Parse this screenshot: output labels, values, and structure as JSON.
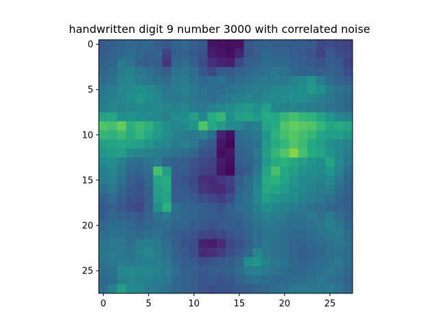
{
  "chart_data": {
    "type": "heatmap",
    "title": "handwritten digit 9 number 3000 with correlated noise",
    "xlabel": "",
    "ylabel": "",
    "x_ticks": [
      0,
      5,
      10,
      15,
      20,
      25
    ],
    "y_ticks": [
      0,
      5,
      10,
      15,
      20,
      25
    ],
    "xlim": [
      -0.5,
      27.5
    ],
    "ylim": [
      27.5,
      -0.5
    ],
    "grid": false,
    "legend": "none",
    "colormap": "viridis",
    "rows": 28,
    "cols": 28,
    "values": [
      [
        0.28,
        0.3,
        0.32,
        0.34,
        0.33,
        0.35,
        0.3,
        0.28,
        0.32,
        0.34,
        0.3,
        0.28,
        0.06,
        0.05,
        0.04,
        0.05,
        0.28,
        0.3,
        0.32,
        0.3,
        0.3,
        0.28,
        0.3,
        0.28,
        0.22,
        0.24,
        0.22,
        0.2
      ],
      [
        0.3,
        0.32,
        0.34,
        0.36,
        0.34,
        0.3,
        0.32,
        0.2,
        0.3,
        0.32,
        0.28,
        0.26,
        0.08,
        0.06,
        0.04,
        0.1,
        0.26,
        0.3,
        0.34,
        0.32,
        0.32,
        0.3,
        0.28,
        0.26,
        0.2,
        0.28,
        0.24,
        0.22
      ],
      [
        0.32,
        0.34,
        0.4,
        0.38,
        0.32,
        0.3,
        0.3,
        0.16,
        0.34,
        0.36,
        0.3,
        0.24,
        0.14,
        0.1,
        0.08,
        0.22,
        0.3,
        0.32,
        0.36,
        0.34,
        0.34,
        0.32,
        0.3,
        0.28,
        0.26,
        0.3,
        0.28,
        0.2
      ],
      [
        0.34,
        0.36,
        0.42,
        0.44,
        0.4,
        0.38,
        0.34,
        0.3,
        0.38,
        0.4,
        0.36,
        0.28,
        0.22,
        0.3,
        0.28,
        0.32,
        0.34,
        0.36,
        0.38,
        0.4,
        0.38,
        0.34,
        0.32,
        0.32,
        0.3,
        0.32,
        0.3,
        0.24
      ],
      [
        0.36,
        0.38,
        0.44,
        0.46,
        0.42,
        0.4,
        0.38,
        0.36,
        0.4,
        0.42,
        0.38,
        0.34,
        0.36,
        0.38,
        0.34,
        0.36,
        0.38,
        0.4,
        0.4,
        0.42,
        0.4,
        0.44,
        0.46,
        0.52,
        0.42,
        0.36,
        0.32,
        0.3
      ],
      [
        0.4,
        0.42,
        0.46,
        0.48,
        0.5,
        0.48,
        0.44,
        0.4,
        0.42,
        0.44,
        0.4,
        0.38,
        0.36,
        0.36,
        0.38,
        0.4,
        0.42,
        0.42,
        0.44,
        0.46,
        0.46,
        0.48,
        0.5,
        0.54,
        0.5,
        0.42,
        0.38,
        0.36
      ],
      [
        0.42,
        0.44,
        0.46,
        0.5,
        0.52,
        0.5,
        0.46,
        0.42,
        0.4,
        0.42,
        0.4,
        0.38,
        0.36,
        0.4,
        0.42,
        0.44,
        0.46,
        0.44,
        0.46,
        0.48,
        0.48,
        0.5,
        0.48,
        0.46,
        0.44,
        0.4,
        0.36,
        0.34
      ],
      [
        0.44,
        0.46,
        0.44,
        0.46,
        0.48,
        0.46,
        0.48,
        0.46,
        0.44,
        0.46,
        0.42,
        0.4,
        0.44,
        0.46,
        0.48,
        0.52,
        0.54,
        0.5,
        0.56,
        0.46,
        0.44,
        0.46,
        0.44,
        0.42,
        0.4,
        0.38,
        0.36,
        0.34
      ],
      [
        0.58,
        0.6,
        0.5,
        0.52,
        0.5,
        0.48,
        0.46,
        0.44,
        0.48,
        0.5,
        0.56,
        0.46,
        0.62,
        0.66,
        0.5,
        0.56,
        0.58,
        0.54,
        0.62,
        0.6,
        0.66,
        0.7,
        0.66,
        0.64,
        0.58,
        0.52,
        0.46,
        0.44
      ],
      [
        0.72,
        0.7,
        0.76,
        0.64,
        0.68,
        0.64,
        0.56,
        0.5,
        0.46,
        0.48,
        0.52,
        0.72,
        0.6,
        0.54,
        0.48,
        0.46,
        0.4,
        0.44,
        0.58,
        0.62,
        0.72,
        0.76,
        0.74,
        0.72,
        0.66,
        0.6,
        0.62,
        0.58
      ],
      [
        0.66,
        0.64,
        0.68,
        0.62,
        0.66,
        0.6,
        0.54,
        0.5,
        0.44,
        0.42,
        0.4,
        0.44,
        0.36,
        0.1,
        0.04,
        0.36,
        0.38,
        0.4,
        0.52,
        0.64,
        0.7,
        0.74,
        0.7,
        0.66,
        0.6,
        0.56,
        0.56,
        0.52
      ],
      [
        0.56,
        0.58,
        0.6,
        0.58,
        0.56,
        0.52,
        0.48,
        0.46,
        0.42,
        0.44,
        0.4,
        0.32,
        0.28,
        0.06,
        0.02,
        0.34,
        0.36,
        0.38,
        0.54,
        0.62,
        0.66,
        0.72,
        0.68,
        0.6,
        0.56,
        0.5,
        0.48,
        0.44
      ],
      [
        0.52,
        0.54,
        0.56,
        0.48,
        0.46,
        0.44,
        0.42,
        0.4,
        0.38,
        0.36,
        0.34,
        0.26,
        0.24,
        0.04,
        0.06,
        0.32,
        0.34,
        0.4,
        0.56,
        0.66,
        0.72,
        0.82,
        0.7,
        0.62,
        0.58,
        0.52,
        0.46,
        0.42
      ],
      [
        0.48,
        0.5,
        0.44,
        0.38,
        0.36,
        0.38,
        0.4,
        0.34,
        0.32,
        0.3,
        0.26,
        0.22,
        0.2,
        0.08,
        0.04,
        0.3,
        0.32,
        0.38,
        0.54,
        0.62,
        0.64,
        0.6,
        0.56,
        0.52,
        0.5,
        0.58,
        0.48,
        0.4
      ],
      [
        0.44,
        0.46,
        0.4,
        0.34,
        0.32,
        0.36,
        0.7,
        0.56,
        0.3,
        0.28,
        0.24,
        0.2,
        0.18,
        0.06,
        0.02,
        0.26,
        0.3,
        0.4,
        0.58,
        0.7,
        0.6,
        0.56,
        0.52,
        0.5,
        0.48,
        0.52,
        0.44,
        0.36
      ],
      [
        0.42,
        0.44,
        0.38,
        0.3,
        0.28,
        0.34,
        0.58,
        0.62,
        0.28,
        0.26,
        0.22,
        0.14,
        0.12,
        0.16,
        0.2,
        0.3,
        0.36,
        0.44,
        0.62,
        0.64,
        0.58,
        0.52,
        0.48,
        0.46,
        0.44,
        0.48,
        0.4,
        0.34
      ],
      [
        0.36,
        0.4,
        0.34,
        0.28,
        0.26,
        0.32,
        0.56,
        0.6,
        0.3,
        0.28,
        0.24,
        0.16,
        0.14,
        0.12,
        0.18,
        0.32,
        0.36,
        0.46,
        0.6,
        0.58,
        0.54,
        0.5,
        0.46,
        0.44,
        0.42,
        0.44,
        0.36,
        0.32
      ],
      [
        0.32,
        0.36,
        0.3,
        0.26,
        0.24,
        0.3,
        0.54,
        0.58,
        0.3,
        0.3,
        0.28,
        0.24,
        0.22,
        0.18,
        0.24,
        0.34,
        0.38,
        0.46,
        0.56,
        0.52,
        0.5,
        0.48,
        0.44,
        0.42,
        0.4,
        0.38,
        0.34,
        0.3
      ],
      [
        0.28,
        0.32,
        0.28,
        0.24,
        0.22,
        0.3,
        0.5,
        0.64,
        0.38,
        0.34,
        0.32,
        0.3,
        0.28,
        0.26,
        0.3,
        0.36,
        0.38,
        0.44,
        0.5,
        0.46,
        0.44,
        0.42,
        0.4,
        0.38,
        0.36,
        0.34,
        0.32,
        0.3
      ],
      [
        0.3,
        0.34,
        0.32,
        0.3,
        0.28,
        0.32,
        0.38,
        0.4,
        0.36,
        0.34,
        0.32,
        0.3,
        0.28,
        0.28,
        0.3,
        0.32,
        0.36,
        0.4,
        0.44,
        0.42,
        0.4,
        0.38,
        0.38,
        0.4,
        0.38,
        0.42,
        0.36,
        0.32
      ],
      [
        0.34,
        0.36,
        0.36,
        0.34,
        0.32,
        0.34,
        0.36,
        0.36,
        0.34,
        0.32,
        0.3,
        0.28,
        0.26,
        0.28,
        0.3,
        0.3,
        0.34,
        0.38,
        0.4,
        0.4,
        0.38,
        0.36,
        0.36,
        0.38,
        0.4,
        0.44,
        0.4,
        0.34
      ],
      [
        0.36,
        0.38,
        0.38,
        0.36,
        0.34,
        0.36,
        0.38,
        0.34,
        0.3,
        0.28,
        0.26,
        0.22,
        0.2,
        0.22,
        0.26,
        0.28,
        0.32,
        0.36,
        0.38,
        0.38,
        0.36,
        0.34,
        0.34,
        0.36,
        0.38,
        0.4,
        0.42,
        0.36
      ],
      [
        0.38,
        0.4,
        0.4,
        0.36,
        0.42,
        0.44,
        0.4,
        0.36,
        0.3,
        0.26,
        0.24,
        0.1,
        0.08,
        0.12,
        0.22,
        0.26,
        0.3,
        0.36,
        0.4,
        0.38,
        0.36,
        0.32,
        0.32,
        0.34,
        0.36,
        0.38,
        0.4,
        0.38
      ],
      [
        0.4,
        0.42,
        0.4,
        0.38,
        0.44,
        0.46,
        0.42,
        0.38,
        0.32,
        0.28,
        0.24,
        0.12,
        0.14,
        0.18,
        0.24,
        0.28,
        0.34,
        0.46,
        0.4,
        0.38,
        0.36,
        0.32,
        0.3,
        0.32,
        0.34,
        0.36,
        0.38,
        0.36
      ],
      [
        0.38,
        0.4,
        0.42,
        0.4,
        0.42,
        0.44,
        0.42,
        0.4,
        0.34,
        0.3,
        0.28,
        0.24,
        0.26,
        0.28,
        0.3,
        0.34,
        0.5,
        0.52,
        0.44,
        0.4,
        0.38,
        0.34,
        0.32,
        0.34,
        0.36,
        0.38,
        0.4,
        0.36
      ],
      [
        0.36,
        0.38,
        0.46,
        0.48,
        0.46,
        0.46,
        0.44,
        0.42,
        0.36,
        0.32,
        0.3,
        0.28,
        0.3,
        0.3,
        0.32,
        0.36,
        0.42,
        0.44,
        0.4,
        0.38,
        0.36,
        0.34,
        0.34,
        0.36,
        0.38,
        0.4,
        0.38,
        0.34
      ],
      [
        0.34,
        0.36,
        0.44,
        0.46,
        0.44,
        0.44,
        0.42,
        0.4,
        0.34,
        0.32,
        0.3,
        0.26,
        0.28,
        0.26,
        0.28,
        0.32,
        0.36,
        0.38,
        0.36,
        0.34,
        0.34,
        0.36,
        0.36,
        0.38,
        0.4,
        0.38,
        0.36,
        0.32
      ],
      [
        0.36,
        0.44,
        0.56,
        0.48,
        0.46,
        0.42,
        0.4,
        0.38,
        0.34,
        0.32,
        0.3,
        0.26,
        0.24,
        0.26,
        0.26,
        0.28,
        0.3,
        0.32,
        0.34,
        0.36,
        0.38,
        0.4,
        0.4,
        0.4,
        0.4,
        0.42,
        0.38,
        0.34
      ]
    ]
  }
}
